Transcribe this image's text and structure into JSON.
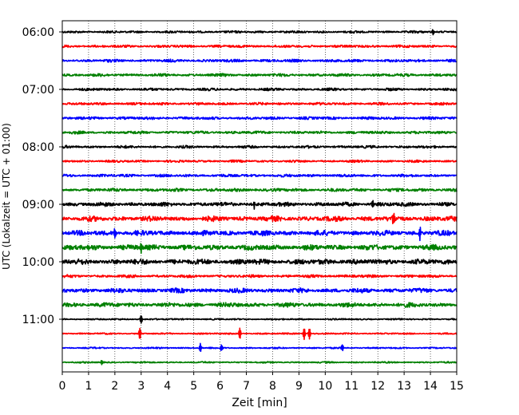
{
  "chart_data": {
    "type": "line",
    "title": "",
    "xlabel": "Zeit  [min]",
    "ylabel": "UTC (Lokalzeit = UTC + 01:00)",
    "xlim": [
      0,
      15
    ],
    "x_ticks": [
      "0",
      "1",
      "2",
      "3",
      "4",
      "5",
      "6",
      "7",
      "8",
      "9",
      "10",
      "11",
      "12",
      "13",
      "14",
      "15"
    ],
    "y_ticks": [
      "06:00",
      "07:00",
      "08:00",
      "09:00",
      "10:00",
      "11:00"
    ],
    "vertical_grid": true,
    "grid_style": "dotted",
    "trace_interval_min": 15,
    "color_cycle": [
      "#000000",
      "#ff0000",
      "#0000ff",
      "#008000"
    ],
    "traces": [
      {
        "start": "06:00",
        "amplitude": 0.18,
        "events": [
          {
            "t": 14.1,
            "a": 0.35
          }
        ]
      },
      {
        "start": "06:15",
        "amplitude": 0.2,
        "events": []
      },
      {
        "start": "06:30",
        "amplitude": 0.22,
        "events": []
      },
      {
        "start": "06:45",
        "amplitude": 0.22,
        "events": []
      },
      {
        "start": "07:00",
        "amplitude": 0.2,
        "events": []
      },
      {
        "start": "07:15",
        "amplitude": 0.2,
        "events": []
      },
      {
        "start": "07:30",
        "amplitude": 0.22,
        "events": []
      },
      {
        "start": "07:45",
        "amplitude": 0.22,
        "events": []
      },
      {
        "start": "08:00",
        "amplitude": 0.2,
        "events": []
      },
      {
        "start": "08:15",
        "amplitude": 0.18,
        "events": []
      },
      {
        "start": "08:30",
        "amplitude": 0.22,
        "events": []
      },
      {
        "start": "08:45",
        "amplitude": 0.25,
        "events": []
      },
      {
        "start": "09:00",
        "amplitude": 0.32,
        "events": [
          {
            "t": 7.3,
            "a": 0.55
          },
          {
            "t": 11.8,
            "a": 0.55
          }
        ]
      },
      {
        "start": "09:15",
        "amplitude": 0.4,
        "events": [
          {
            "t": 12.6,
            "a": 0.9
          }
        ]
      },
      {
        "start": "09:30",
        "amplitude": 0.4,
        "events": [
          {
            "t": 2.0,
            "a": 0.7
          },
          {
            "t": 13.6,
            "a": 0.9
          }
        ]
      },
      {
        "start": "09:45",
        "amplitude": 0.42,
        "events": [
          {
            "t": 3.0,
            "a": 0.7
          }
        ]
      },
      {
        "start": "10:00",
        "amplitude": 0.42,
        "events": []
      },
      {
        "start": "10:15",
        "amplitude": 0.22,
        "events": []
      },
      {
        "start": "10:30",
        "amplitude": 0.35,
        "events": []
      },
      {
        "start": "10:45",
        "amplitude": 0.35,
        "events": []
      },
      {
        "start": "11:00",
        "amplitude": 0.12,
        "events": [
          {
            "t": 3.0,
            "a": 0.6
          }
        ]
      },
      {
        "start": "11:15",
        "amplitude": 0.12,
        "events": [
          {
            "t": 2.95,
            "a": 0.8
          },
          {
            "t": 6.75,
            "a": 0.8
          },
          {
            "t": 9.2,
            "a": 0.8
          },
          {
            "t": 9.4,
            "a": 0.8
          }
        ]
      },
      {
        "start": "11:30",
        "amplitude": 0.12,
        "events": [
          {
            "t": 5.25,
            "a": 0.6
          },
          {
            "t": 6.05,
            "a": 0.4
          },
          {
            "t": 10.65,
            "a": 0.4
          }
        ]
      },
      {
        "start": "11:45",
        "amplitude": 0.12,
        "events": [
          {
            "t": 1.5,
            "a": 0.3
          }
        ]
      }
    ]
  }
}
